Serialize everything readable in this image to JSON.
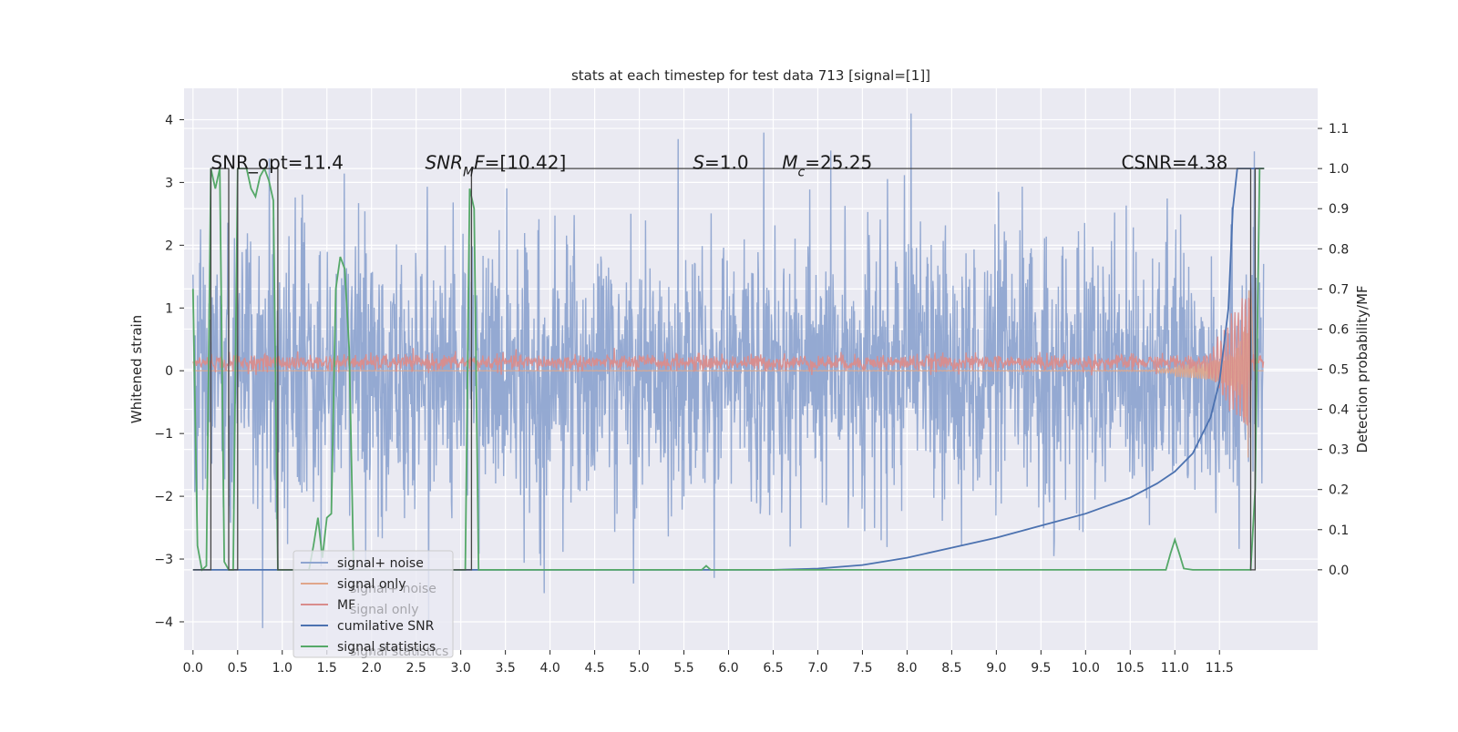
{
  "chart_data": {
    "type": "line",
    "title": "stats at each timestep for test data 713 [signal=[1]]",
    "xlabel": "",
    "ylabel_left": "Whitened strain",
    "ylabel_right": "Detection probability/MF",
    "xlim": [
      -0.1,
      12.6
    ],
    "ylim_left": [
      -4.45,
      4.5
    ],
    "ylim_right": [
      -0.2,
      1.2
    ],
    "x_ticks": [
      0.0,
      0.5,
      1.0,
      1.5,
      2.0,
      2.5,
      3.0,
      3.5,
      4.0,
      4.5,
      5.0,
      5.5,
      6.0,
      6.5,
      7.0,
      7.5,
      8.0,
      8.5,
      9.0,
      9.5,
      10.0,
      10.5,
      11.0,
      11.5
    ],
    "x_tick_labels": [
      "0.0",
      "0.5",
      "1.0",
      "1.5",
      "2.0",
      "2.5",
      "3.0",
      "3.5",
      "4.0",
      "4.5",
      "5.0",
      "5.5",
      "6.0",
      "6.5",
      "7.0",
      "7.5",
      "8.0",
      "8.5",
      "9.0",
      "9.5",
      "10.0",
      "10.5",
      "11.0",
      "11.5"
    ],
    "y_ticks_left": [
      -4,
      -3,
      -2,
      -1,
      0,
      1,
      2,
      3,
      4
    ],
    "y_tick_labels_left": [
      "−4",
      "−3",
      "−2",
      "−1",
      "0",
      "1",
      "2",
      "3",
      "4"
    ],
    "y_ticks_right": [
      0.0,
      0.1,
      0.2,
      0.3,
      0.4,
      0.5,
      0.6,
      0.7,
      0.8,
      0.9,
      1.0,
      1.1
    ],
    "y_tick_labels_right": [
      "0.0",
      "0.1",
      "0.2",
      "0.3",
      "0.4",
      "0.5",
      "0.6",
      "0.7",
      "0.8",
      "0.9",
      "1.0",
      "1.1"
    ],
    "grid": true,
    "legend_position": "lower-left",
    "annotations": [
      {
        "parts": [
          {
            "t": "SNR_opt=11.4"
          }
        ],
        "x": 0.2,
        "y": 3.3
      },
      {
        "parts": [
          {
            "t": "SNR",
            "i": true
          },
          {
            "t": "M",
            "i": true,
            "sub": true
          },
          {
            "t": "F",
            "i": true
          },
          {
            "t": "=[10.42]"
          }
        ],
        "x": 2.6,
        "y": 3.3
      },
      {
        "parts": [
          {
            "t": "S",
            "i": true
          },
          {
            "t": "=1.0"
          }
        ],
        "x": 5.6,
        "y": 3.3
      },
      {
        "parts": [
          {
            "t": "M",
            "i": true
          },
          {
            "t": "c",
            "i": true,
            "sub": true
          },
          {
            "t": "=25.25"
          }
        ],
        "x": 6.6,
        "y": 3.3
      },
      {
        "parts": [
          {
            "t": "CSNR=4.38"
          }
        ],
        "x": 10.4,
        "y": 3.3
      }
    ],
    "series": [
      {
        "name": "signal+ noise",
        "axis": "left",
        "kind": "noise",
        "color": "#8fa5d0",
        "sigma": 1.0,
        "duration": 12.0
      },
      {
        "name": "signal only",
        "axis": "left",
        "kind": "chirp",
        "color": "#e0a68a",
        "tc": 11.85,
        "amp_peak": 1.0
      },
      {
        "name": "MF",
        "axis": "left",
        "kind": "mf",
        "color": "#d98c8c"
      },
      {
        "name": "cumilative SNR",
        "axis": "right",
        "kind": "line",
        "color": "#4c72b0",
        "x": [
          0.0,
          6.5,
          7.0,
          7.5,
          8.0,
          8.5,
          9.0,
          9.5,
          10.0,
          10.5,
          10.8,
          11.0,
          11.2,
          11.4,
          11.5,
          11.6,
          11.65,
          11.7,
          12.0
        ],
        "y": [
          0.0,
          0.0,
          0.003,
          0.012,
          0.03,
          0.055,
          0.08,
          0.11,
          0.14,
          0.18,
          0.215,
          0.245,
          0.29,
          0.38,
          0.47,
          0.65,
          0.9,
          1.0,
          1.0
        ]
      },
      {
        "name": "signal statistics",
        "axis": "right",
        "kind": "line",
        "color": "#55a868",
        "x": [
          0.0,
          0.05,
          0.1,
          0.15,
          0.2,
          0.25,
          0.3,
          0.35,
          0.4,
          0.45,
          0.5,
          0.55,
          0.6,
          0.65,
          0.7,
          0.75,
          0.8,
          0.85,
          0.9,
          0.95,
          1.0,
          1.05,
          1.1,
          1.2,
          1.3,
          1.35,
          1.4,
          1.45,
          1.5,
          1.55,
          1.6,
          1.65,
          1.7,
          1.75,
          1.8,
          1.85,
          1.9,
          2.0,
          3.0,
          3.05,
          3.1,
          3.15,
          3.2,
          3.3,
          5.7,
          5.75,
          5.8,
          7.0,
          10.0,
          10.9,
          10.95,
          11.0,
          11.05,
          11.1,
          11.2,
          11.8,
          11.85,
          11.9,
          11.95,
          12.0
        ],
        "y": [
          0.7,
          0.06,
          0.0,
          0.01,
          1.0,
          0.95,
          1.0,
          0.02,
          0.0,
          0.0,
          1.0,
          1.0,
          1.0,
          0.95,
          0.93,
          0.98,
          1.0,
          0.97,
          0.92,
          0.0,
          0.0,
          0.0,
          0.0,
          0.0,
          0.0,
          0.06,
          0.13,
          0.03,
          0.13,
          0.14,
          0.7,
          0.78,
          0.75,
          0.55,
          0.0,
          0.0,
          0.0,
          0.0,
          0.0,
          0.0,
          0.95,
          0.9,
          0.0,
          0.0,
          0.0,
          0.01,
          0.0,
          0.0,
          0.0,
          0.0,
          0.04,
          0.075,
          0.04,
          0.003,
          0.0,
          0.0,
          0.0,
          0.2,
          1.0,
          1.0
        ]
      },
      {
        "name": "",
        "axis": "right",
        "kind": "steps",
        "color": "#444444",
        "x": [
          0.0,
          0.18,
          0.2,
          0.37,
          0.4,
          0.5,
          0.95,
          3.05,
          3.12,
          11.85,
          11.9,
          12.0
        ],
        "y": [
          0.0,
          0.0,
          1.0,
          1.0,
          0.0,
          1.0,
          0.0,
          0.0,
          1.0,
          0.0,
          1.0,
          1.0
        ]
      }
    ],
    "legend": [
      {
        "label": "signal+ noise",
        "color": "#8fa5d0"
      },
      {
        "label": "signal only",
        "color": "#e0a68a"
      },
      {
        "label": "MF",
        "color": "#d98c8c"
      },
      {
        "label": "cumilative SNR",
        "color": "#4c72b0"
      },
      {
        "label": "signal statistics",
        "color": "#55a868"
      }
    ],
    "legend_ghost_text": [
      "signal+ noise",
      "signal only",
      "signal statistics"
    ]
  }
}
